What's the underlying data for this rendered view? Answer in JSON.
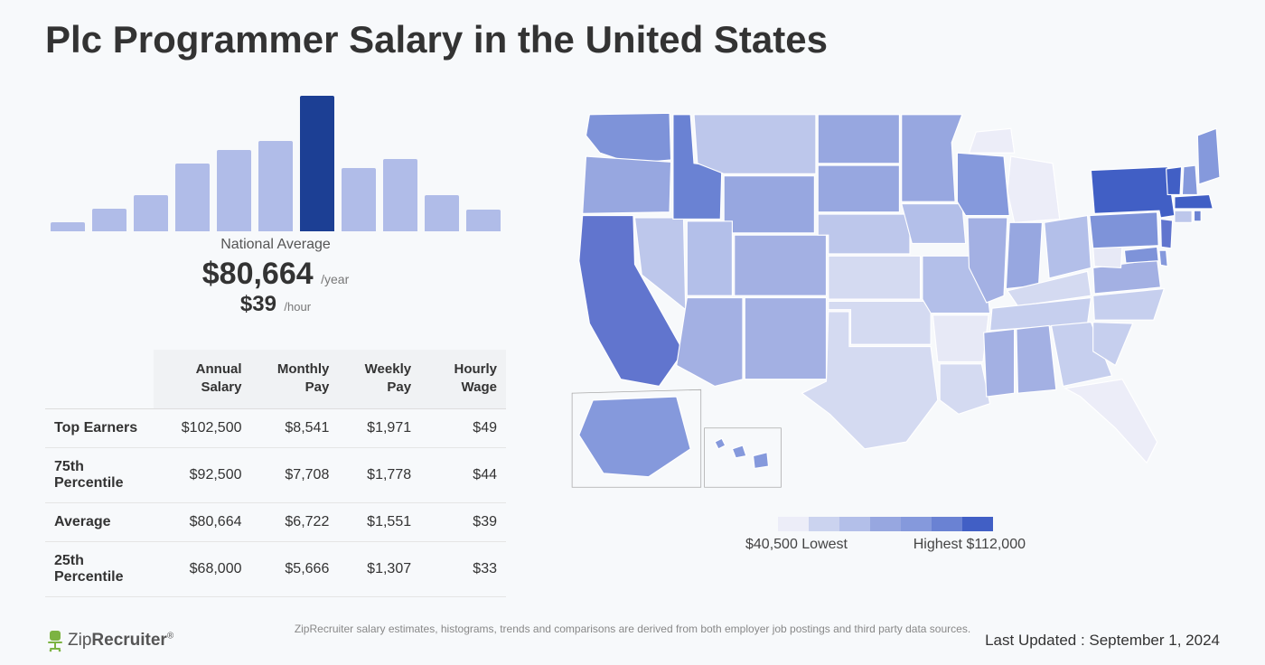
{
  "title": "Plc Programmer Salary in the United States",
  "histogram": {
    "heights": [
      10,
      25,
      40,
      75,
      90,
      100,
      150,
      70,
      80,
      40,
      24
    ],
    "colors": [
      "#b0bce8",
      "#b0bce8",
      "#b0bce8",
      "#b0bce8",
      "#b0bce8",
      "#b0bce8",
      "#1c3f94",
      "#b0bce8",
      "#b0bce8",
      "#b0bce8",
      "#b0bce8"
    ]
  },
  "national_average_label": "National Average",
  "yearly_salary": "$80,664",
  "yearly_unit": "/year",
  "hourly_salary": "$39",
  "hourly_unit": "/hour",
  "table": {
    "columns": [
      "",
      "Annual Salary",
      "Monthly Pay",
      "Weekly Pay",
      "Hourly Wage"
    ],
    "rows": [
      [
        "Top Earners",
        "$102,500",
        "$8,541",
        "$1,971",
        "$49"
      ],
      [
        "75th Percentile",
        "$92,500",
        "$7,708",
        "$1,778",
        "$44"
      ],
      [
        "Average",
        "$80,664",
        "$6,722",
        "$1,551",
        "$39"
      ],
      [
        "25th Percentile",
        "$68,000",
        "$5,666",
        "$1,307",
        "$33"
      ]
    ]
  },
  "map": {
    "shade_scale": [
      "#ecedf8",
      "#cbd3ef",
      "#b3bfe9",
      "#97a7e0",
      "#8599dc",
      "#6a82d3",
      "#415fc5"
    ],
    "states": {
      "WA": "#7e93d9",
      "OR": "#97a7e0",
      "CA": "#6175ce",
      "NV": "#bdc7eb",
      "ID": "#6a82d3",
      "MT": "#bdc7eb",
      "WY": "#97a7e0",
      "UT": "#b3bfe9",
      "AZ": "#a3b0e3",
      "CO": "#a3b0e3",
      "NM": "#a3b0e3",
      "ND": "#97a7e0",
      "SD": "#97a7e0",
      "NE": "#bdc7eb",
      "KS": "#d4daf1",
      "OK": "#d4daf1",
      "TX": "#d4daf1",
      "MN": "#97a7e0",
      "IA": "#b3bfe9",
      "MO": "#b3bfe9",
      "AR": "#e7e9f6",
      "LA": "#d4daf1",
      "WI": "#8599dc",
      "IL": "#a3b0e3",
      "MI": "#ecedf8",
      "IN": "#97a7e0",
      "OH": "#b3bfe9",
      "KY": "#d4daf1",
      "TN": "#c6cfee",
      "MS": "#a3b0e3",
      "AL": "#a3b0e3",
      "GA": "#c6cfee",
      "FL": "#ecedf8",
      "SC": "#c6cfee",
      "NC": "#c6cfee",
      "VA": "#a3b0e3",
      "WV": "#e7e9f6",
      "MD": "#7e93d9",
      "DE": "#8599dc",
      "PA": "#7e93d9",
      "NJ": "#6175ce",
      "NY": "#415fc5",
      "CT": "#bdc7eb",
      "RI": "#6a82d3",
      "MA": "#415fc5",
      "VT": "#415fc5",
      "NH": "#8599dc",
      "ME": "#8599dc",
      "AK": "#8599dc",
      "HI": "#8599dc"
    },
    "legend_low_label": "$40,500 Lowest",
    "legend_high_label": "Highest $112,000"
  },
  "footnote": "ZipRecruiter salary estimates, histograms, trends and comparisons are derived from both employer job postings and third party data sources.",
  "logo_text_1": "Zip",
  "logo_text_2": "Recruiter",
  "last_updated": "Last Updated : September 1, 2024"
}
